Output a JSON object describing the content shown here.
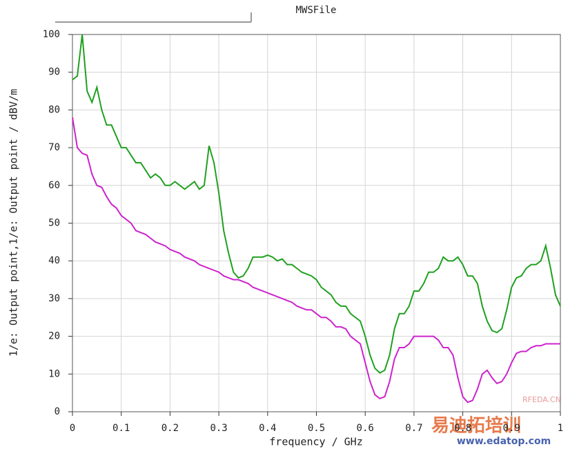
{
  "chart_data": {
    "type": "line",
    "title": "MWSFile",
    "xlabel": "frequency / GHz",
    "ylabel": "1/e: Output point,1/e: Output point / dBV/m",
    "xlim": [
      0,
      1
    ],
    "ylim": [
      0,
      100
    ],
    "xticks": [
      0,
      0.1,
      0.2,
      0.3,
      0.4,
      0.5,
      0.6,
      0.7,
      0.8,
      0.9,
      1
    ],
    "yticks": [
      0,
      10,
      20,
      30,
      40,
      50,
      60,
      70,
      80,
      90,
      100
    ],
    "grid": true,
    "x": [
      0,
      0.01,
      0.02,
      0.03,
      0.04,
      0.05,
      0.06,
      0.07,
      0.08,
      0.09,
      0.1,
      0.11,
      0.12,
      0.13,
      0.14,
      0.15,
      0.16,
      0.17,
      0.18,
      0.19,
      0.2,
      0.21,
      0.22,
      0.23,
      0.24,
      0.25,
      0.26,
      0.27,
      0.28,
      0.29,
      0.3,
      0.31,
      0.32,
      0.33,
      0.34,
      0.35,
      0.36,
      0.37,
      0.38,
      0.39,
      0.4,
      0.41,
      0.42,
      0.43,
      0.44,
      0.45,
      0.46,
      0.47,
      0.48,
      0.49,
      0.5,
      0.51,
      0.52,
      0.53,
      0.54,
      0.55,
      0.56,
      0.57,
      0.58,
      0.59,
      0.6,
      0.61,
      0.62,
      0.63,
      0.64,
      0.65,
      0.66,
      0.67,
      0.68,
      0.69,
      0.7,
      0.71,
      0.72,
      0.73,
      0.74,
      0.75,
      0.76,
      0.77,
      0.78,
      0.79,
      0.8,
      0.81,
      0.82,
      0.83,
      0.84,
      0.85,
      0.86,
      0.87,
      0.88,
      0.89,
      0.9,
      0.91,
      0.92,
      0.93,
      0.94,
      0.95,
      0.96,
      0.97,
      0.98,
      0.99,
      1
    ],
    "series": [
      {
        "color": "#1fa01f",
        "values": [
          88,
          89,
          100,
          85,
          82,
          86,
          80,
          76,
          76,
          73,
          70,
          70,
          68,
          66,
          66,
          64,
          62,
          63,
          62,
          60,
          60,
          61,
          60,
          59,
          60,
          61,
          59,
          60,
          70.5,
          66,
          58,
          48,
          42,
          37,
          35.5,
          36,
          38,
          41,
          41,
          41,
          41.5,
          41,
          40,
          40.5,
          39,
          39,
          38,
          37,
          36.5,
          36,
          35,
          33,
          32,
          31,
          29,
          28,
          28,
          26,
          25,
          24,
          20,
          15,
          11.5,
          10.3,
          11,
          15,
          22,
          26,
          26,
          28,
          32,
          32,
          34,
          37,
          37,
          38,
          41,
          40,
          40,
          41,
          39,
          36,
          36,
          34,
          28,
          24,
          21.5,
          21,
          22,
          27,
          33,
          35.5,
          36,
          38,
          39,
          39,
          40,
          44,
          38,
          31,
          28
        ]
      },
      {
        "color": "#cc22cc",
        "values": [
          78,
          70,
          68.5,
          68,
          63,
          60,
          59.5,
          57,
          55,
          54,
          52,
          51,
          50,
          48,
          47.5,
          47,
          46,
          45,
          44.5,
          44,
          43,
          42.5,
          42,
          41,
          40.5,
          40,
          39,
          38.5,
          38,
          37.5,
          37,
          36,
          35.5,
          35,
          35,
          34.5,
          34,
          33,
          32.5,
          32,
          31.5,
          31,
          30.5,
          30,
          29.5,
          29,
          28,
          27.5,
          27,
          27,
          26,
          25,
          25,
          24,
          22.5,
          22.5,
          22,
          20,
          19,
          18,
          13,
          8,
          4.5,
          3.5,
          4,
          8,
          14,
          17,
          17,
          18,
          20,
          20,
          20,
          20,
          20,
          19,
          17,
          17,
          15,
          9,
          4,
          2.5,
          3,
          6,
          10,
          11,
          9,
          7.5,
          8,
          10,
          13,
          15.5,
          16,
          16,
          17,
          17.5,
          17.5,
          18,
          18,
          18,
          18
        ]
      }
    ],
    "annotations": [
      "易迪拓培训",
      "www.edatop.com",
      "RFEDA.CN"
    ]
  }
}
